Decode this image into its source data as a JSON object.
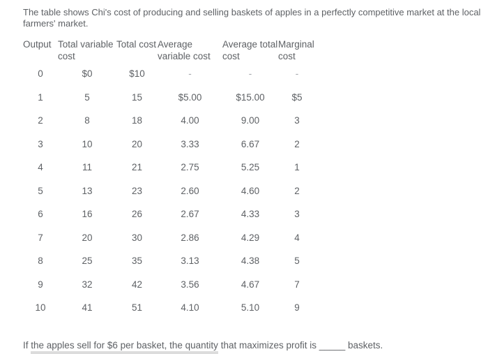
{
  "intro": "The table shows Chi's cost of producing and selling baskets of apples in a perfectly competitive market at the local farmers' market.",
  "table": {
    "columns": [
      {
        "label": "Output"
      },
      {
        "label": "Total variable cost"
      },
      {
        "label": "Total cost"
      },
      {
        "label": "Average variable cost"
      },
      {
        "label": "Average total cost"
      },
      {
        "label": "Marginal cost"
      }
    ],
    "rows": [
      [
        "0",
        "$0",
        "$10",
        "-",
        "-",
        "-"
      ],
      [
        "1",
        "5",
        "15",
        "$5.00",
        "$15.00",
        "$5"
      ],
      [
        "2",
        "8",
        "18",
        "4.00",
        "9.00",
        "3"
      ],
      [
        "3",
        "10",
        "20",
        "3.33",
        "6.67",
        "2"
      ],
      [
        "4",
        "11",
        "21",
        "2.75",
        "5.25",
        "1"
      ],
      [
        "5",
        "13",
        "23",
        "2.60",
        "4.60",
        "2"
      ],
      [
        "6",
        "16",
        "26",
        "2.67",
        "4.33",
        "3"
      ],
      [
        "7",
        "20",
        "30",
        "2.86",
        "4.29",
        "4"
      ],
      [
        "8",
        "25",
        "35",
        "3.13",
        "4.38",
        "5"
      ],
      [
        "9",
        "32",
        "42",
        "3.56",
        "4.67",
        "7"
      ],
      [
        "10",
        "41",
        "51",
        "4.10",
        "5.10",
        "9"
      ]
    ]
  },
  "question": {
    "prefix": "If ",
    "underlined": "the apples sell for $6 per basket, the quantity",
    "middle": " that maximizes profit is ",
    "blank": "_____",
    "end": " baskets."
  },
  "colors": {
    "text": "#5e6165",
    "muted_dash": "#a3a6aa",
    "phrase_underline": "#dcdcdc",
    "background": "#ffffff"
  }
}
